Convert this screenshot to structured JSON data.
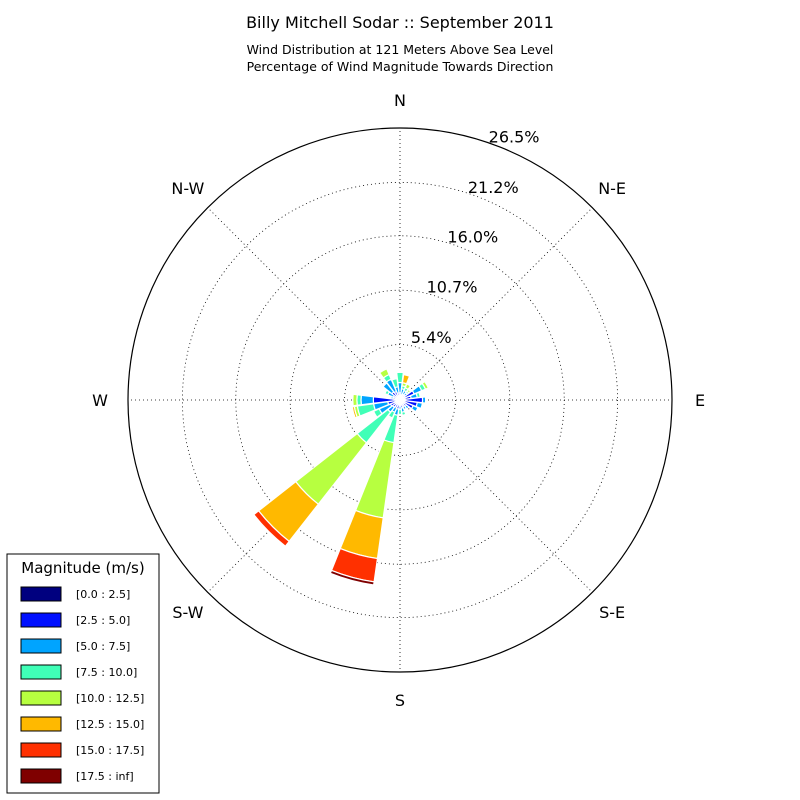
{
  "chart_data": {
    "type": "windrose",
    "title": "Billy Mitchell Sodar :: September 2011",
    "subtitle_lines": [
      "Wind Distribution at 121 Meters Above Sea Level",
      "Percentage of Wind Magnitude Towards Direction"
    ],
    "direction_labels": [
      {
        "label": "N",
        "angle": 0
      },
      {
        "label": "N-E",
        "angle": 45
      },
      {
        "label": "E",
        "angle": 90
      },
      {
        "label": "S-E",
        "angle": 135
      },
      {
        "label": "S",
        "angle": 180
      },
      {
        "label": "S-W",
        "angle": 225
      },
      {
        "label": "W",
        "angle": 270
      },
      {
        "label": "N-W",
        "angle": 315
      }
    ],
    "radial_ticks": [
      {
        "value": 5.4,
        "label": "5.4%"
      },
      {
        "value": 10.7,
        "label": "10.7%"
      },
      {
        "value": 16.0,
        "label": "16.0%"
      },
      {
        "value": 21.2,
        "label": "21.2%"
      },
      {
        "value": 26.5,
        "label": "26.5%"
      }
    ],
    "rmax": 26.5,
    "grid": true,
    "legend": {
      "title": "Magnitude (m/s)",
      "placement": "bottom-left",
      "bins": [
        "[0.0 : 2.5]",
        "[2.5 : 5.0]",
        "[5.0 : 7.5]",
        "[7.5 : 10.0]",
        "[10.0 : 12.5]",
        "[12.5 : 15.0]",
        "[15.0 : 17.5]",
        "[17.5 : inf]"
      ],
      "colors": [
        "#00007f",
        "#0010ff",
        "#00a4ff",
        "#40ffb7",
        "#b7ff40",
        "#ffb900",
        "#ff3000",
        "#7f0000"
      ]
    },
    "sector_width_deg": 15,
    "sectors": [
      {
        "dir": 0,
        "values": [
          0.2,
          0.5,
          1.0,
          1.0,
          0.1,
          0,
          0,
          0
        ]
      },
      {
        "dir": 15,
        "values": [
          0.2,
          0.3,
          0.6,
          0.3,
          0.3,
          0.8,
          0,
          0
        ]
      },
      {
        "dir": 30,
        "values": [
          0.2,
          0.4,
          0.4,
          0.3,
          0.4,
          0,
          0,
          0
        ]
      },
      {
        "dir": 45,
        "values": [
          0.2,
          0.4,
          0.3,
          0.2,
          0.2,
          0,
          0,
          0
        ]
      },
      {
        "dir": 60,
        "values": [
          0.2,
          1.3,
          0.8,
          0.4,
          0.3,
          0,
          0,
          0
        ]
      },
      {
        "dir": 75,
        "values": [
          0.2,
          0.9,
          0.6,
          0.3,
          0.1,
          0,
          0,
          0
        ]
      },
      {
        "dir": 90,
        "values": [
          0.2,
          2.0,
          0.3,
          0,
          0,
          0,
          0,
          0
        ]
      },
      {
        "dir": 105,
        "values": [
          0.2,
          1.5,
          0.5,
          0,
          0,
          0,
          0,
          0
        ]
      },
      {
        "dir": 120,
        "values": [
          0.2,
          1.2,
          0.5,
          0,
          0,
          0,
          0,
          0
        ]
      },
      {
        "dir": 135,
        "values": [
          0.2,
          0.6,
          0.3,
          0,
          0,
          0,
          0,
          0
        ]
      },
      {
        "dir": 150,
        "values": [
          0.2,
          0.5,
          0.3,
          0,
          0,
          0,
          0,
          0
        ]
      },
      {
        "dir": 165,
        "values": [
          0.2,
          0.6,
          0.4,
          0.3,
          0,
          0,
          0,
          0
        ]
      },
      {
        "dir": 180,
        "values": [
          0.2,
          0.4,
          0.3,
          0.5,
          0,
          0,
          0,
          0
        ]
      },
      {
        "dir": 195,
        "values": [
          0.3,
          0.6,
          0.6,
          2.7,
          7.4,
          4.0,
          2.3,
          0.3
        ]
      },
      {
        "dir": 210,
        "values": [
          0.3,
          0.5,
          0.5,
          0.6,
          0,
          0,
          0,
          0
        ]
      },
      {
        "dir": 225,
        "values": [
          0.3,
          0.6,
          0.6,
          3.8,
          7.6,
          4.6,
          0.6,
          0
        ]
      },
      {
        "dir": 240,
        "values": [
          0.3,
          0.7,
          1.2,
          0.6,
          0,
          0,
          0,
          0
        ]
      },
      {
        "dir": 255,
        "values": [
          0.3,
          0.9,
          1.4,
          1.6,
          0.3,
          0.2,
          0,
          0
        ]
      },
      {
        "dir": 270,
        "values": [
          0.3,
          2.3,
          1.2,
          0.4,
          0.4,
          0,
          0,
          0
        ]
      },
      {
        "dir": 285,
        "values": [
          0.2,
          0.5,
          0.2,
          0,
          0,
          0,
          0,
          0
        ]
      },
      {
        "dir": 300,
        "values": [
          0.2,
          0.5,
          0.6,
          0.3,
          0,
          0,
          0,
          0
        ]
      },
      {
        "dir": 315,
        "values": [
          0.2,
          0.8,
          1.1,
          0,
          0,
          0,
          0,
          0
        ]
      },
      {
        "dir": 330,
        "values": [
          0.2,
          0.7,
          1.3,
          0.5,
          0.6,
          0,
          0,
          0
        ]
      },
      {
        "dir": 345,
        "values": [
          0.2,
          0.5,
          0.6,
          0.8,
          0,
          0,
          0,
          0
        ]
      }
    ]
  }
}
